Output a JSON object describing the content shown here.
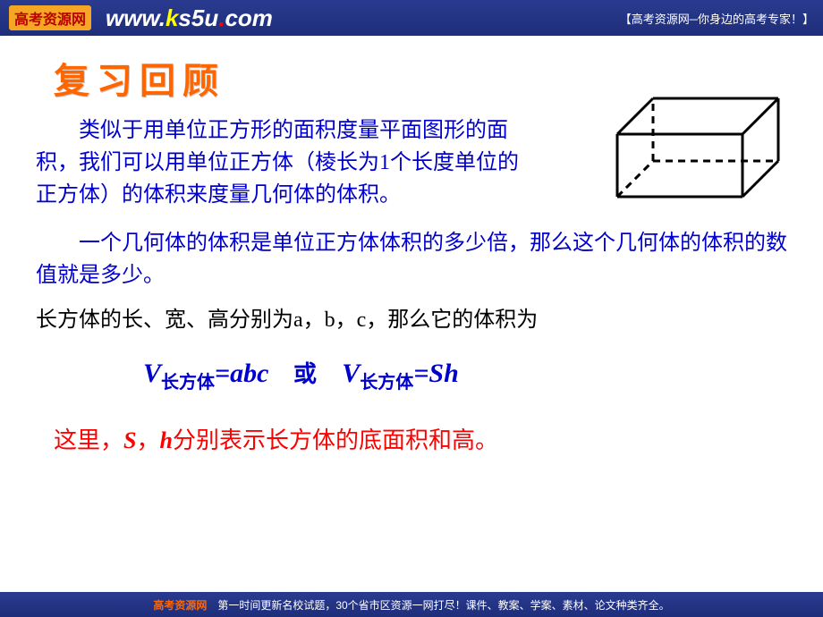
{
  "header": {
    "logo_text": "高考资源网",
    "url_prefix": "www.",
    "url_k": "k",
    "url_s5u": "s5u",
    "url_dot": ".",
    "url_com": "com",
    "tagline": "【高考资源网─你身边的高考专家！】"
  },
  "title": "复习回顾",
  "para1": "类似于用单位正方形的面积度量平面图形的面积，我们可以用单位正方体（棱长为1个长度单位的正方体）的体积来度量几何体的体积。",
  "para2": "一个几何体的体积是单位正方体体积的多少倍，那么这个几何体的体积的数值就是多少。",
  "para3": "长方体的长、宽、高分别为a，b，c，那么它的体积为",
  "formula": {
    "v": "V",
    "sub_label": "长方体",
    "eq1_rhs": "=abc",
    "or": "或",
    "eq2_rhs": "=Sh"
  },
  "para4_pre": "这里，",
  "para4_s": "S",
  "para4_comma": "，",
  "para4_h": "h",
  "para4_post": "分别表示长方体的底面积和高。",
  "footer": {
    "logo": "高考资源网",
    "text": "第一时间更新名校试题，30个省市区资源一网打尽！课件、教案、学案、素材、论文种类齐全。"
  },
  "cube": {
    "stroke": "#000000",
    "stroke_width": 3,
    "dash": "8,6"
  }
}
